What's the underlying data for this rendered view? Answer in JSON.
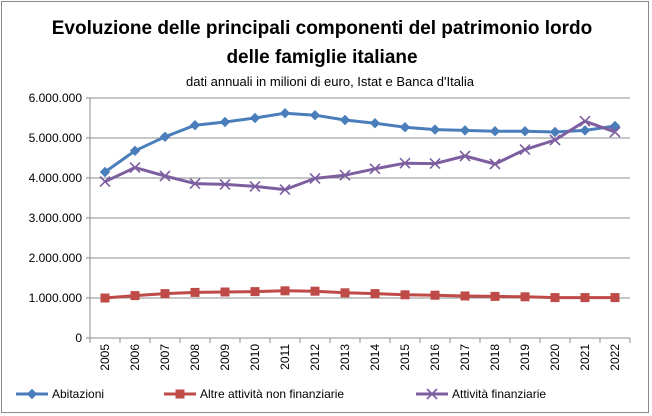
{
  "chart_data": {
    "type": "line",
    "title_line1": "Evoluzione  delle  principali  componenti  del  patrimonio  lordo",
    "title_line2": "delle famiglie italiane",
    "subtitle": "dati annuali in milioni di euro, Istat e Banca d'Italia",
    "xlabel": "",
    "ylabel": "",
    "ylim": [
      0,
      6000000
    ],
    "yticks": [
      0,
      1000000,
      2000000,
      3000000,
      4000000,
      5000000,
      6000000
    ],
    "ytick_labels": [
      "0",
      "1.000.000",
      "2.000.000",
      "3.000.000",
      "4.000.000",
      "5.000.000",
      "6.000.000"
    ],
    "grid": "horizontal",
    "legend_position": "bottom",
    "categories": [
      "2005",
      "2006",
      "2007",
      "2008",
      "2009",
      "2010",
      "2011",
      "2012",
      "2013",
      "2014",
      "2015",
      "2016",
      "2017",
      "2018",
      "2019",
      "2020",
      "2021",
      "2022"
    ],
    "series": [
      {
        "name": "Abitazioni",
        "color": "#4a7ebb",
        "marker": "diamond",
        "values": [
          4150000,
          4680000,
          5030000,
          5320000,
          5400000,
          5500000,
          5620000,
          5570000,
          5450000,
          5370000,
          5270000,
          5210000,
          5190000,
          5170000,
          5170000,
          5150000,
          5190000,
          5300000
        ]
      },
      {
        "name": "Altre attività non finanziarie",
        "color": "#be4b48",
        "marker": "square",
        "values": [
          1000000,
          1060000,
          1110000,
          1140000,
          1150000,
          1160000,
          1180000,
          1170000,
          1130000,
          1110000,
          1080000,
          1070000,
          1050000,
          1040000,
          1030000,
          1010000,
          1010000,
          1010000
        ]
      },
      {
        "name": "Attività finanziarie",
        "color": "#7d5fa0",
        "marker": "x",
        "values": [
          3910000,
          4260000,
          4050000,
          3860000,
          3840000,
          3790000,
          3710000,
          3990000,
          4070000,
          4230000,
          4370000,
          4360000,
          4550000,
          4350000,
          4710000,
          4950000,
          5420000,
          5150000
        ]
      }
    ]
  }
}
